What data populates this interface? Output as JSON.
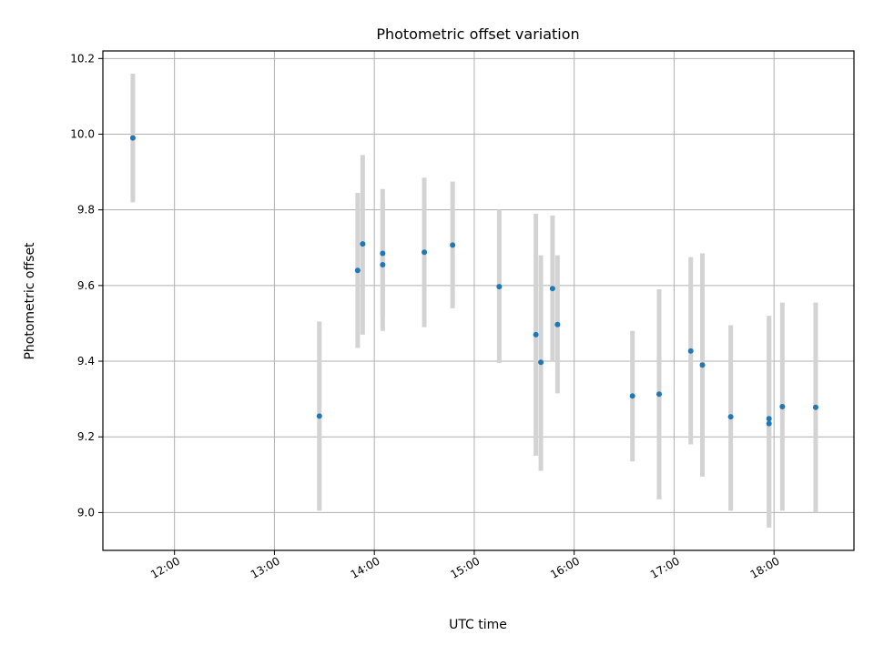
{
  "chart_data": {
    "type": "scatter",
    "title": "Photometric offset variation",
    "xlabel": "UTC time",
    "ylabel": "Photometric offset",
    "x_tick_labels": [
      "12:00",
      "13:00",
      "14:00",
      "15:00",
      "16:00",
      "17:00",
      "18:00"
    ],
    "y_tick_labels": [
      "9.0",
      "9.2",
      "9.4",
      "9.6",
      "9.8",
      "10.0",
      "10.2"
    ],
    "xlim": [
      "11:17",
      "18:48"
    ],
    "ylim": [
      8.9,
      10.22
    ],
    "grid": true,
    "marker_color": "#1f77b4",
    "errorbar_color": "#d3d3d3",
    "points": [
      {
        "x": "11:35",
        "y": 9.99,
        "ylow": 9.82,
        "yhigh": 10.16
      },
      {
        "x": "13:27",
        "y": 9.255,
        "ylow": 9.005,
        "yhigh": 9.505
      },
      {
        "x": "13:50",
        "y": 9.64,
        "ylow": 9.435,
        "yhigh": 9.845
      },
      {
        "x": "13:53",
        "y": 9.71,
        "ylow": 9.47,
        "yhigh": 9.945
      },
      {
        "x": "14:05",
        "y": 9.655,
        "ylow": 9.48,
        "yhigh": 9.825
      },
      {
        "x": "14:05",
        "y": 9.685,
        "ylow": 9.515,
        "yhigh": 9.855
      },
      {
        "x": "14:30",
        "y": 9.688,
        "ylow": 9.49,
        "yhigh": 9.885
      },
      {
        "x": "14:47",
        "y": 9.707,
        "ylow": 9.54,
        "yhigh": 9.875
      },
      {
        "x": "15:15",
        "y": 9.597,
        "ylow": 9.395,
        "yhigh": 9.8
      },
      {
        "x": "15:37",
        "y": 9.47,
        "ylow": 9.15,
        "yhigh": 9.79
      },
      {
        "x": "15:40",
        "y": 9.397,
        "ylow": 9.11,
        "yhigh": 9.68
      },
      {
        "x": "15:47",
        "y": 9.592,
        "ylow": 9.4,
        "yhigh": 9.785
      },
      {
        "x": "15:50",
        "y": 9.497,
        "ylow": 9.315,
        "yhigh": 9.68
      },
      {
        "x": "16:35",
        "y": 9.308,
        "ylow": 9.135,
        "yhigh": 9.48
      },
      {
        "x": "16:51",
        "y": 9.313,
        "ylow": 9.035,
        "yhigh": 9.59
      },
      {
        "x": "17:10",
        "y": 9.427,
        "ylow": 9.18,
        "yhigh": 9.675
      },
      {
        "x": "17:17",
        "y": 9.39,
        "ylow": 9.095,
        "yhigh": 9.685
      },
      {
        "x": "17:34",
        "y": 9.253,
        "ylow": 9.005,
        "yhigh": 9.495
      },
      {
        "x": "17:57",
        "y": 9.235,
        "ylow": 8.96,
        "yhigh": 9.51
      },
      {
        "x": "17:57",
        "y": 9.248,
        "ylow": 8.97,
        "yhigh": 9.52
      },
      {
        "x": "18:05",
        "y": 9.28,
        "ylow": 9.005,
        "yhigh": 9.555
      },
      {
        "x": "18:25",
        "y": 9.278,
        "ylow": 9.0,
        "yhigh": 9.555
      }
    ]
  }
}
